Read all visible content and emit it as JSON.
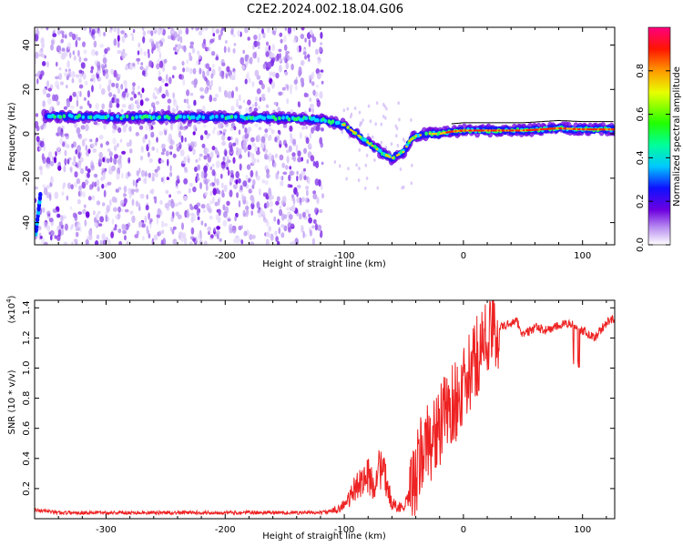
{
  "figure_title": "C2E2.2024.002.18.04.G06",
  "chart_data": [
    {
      "type": "heatmap",
      "title": "",
      "xlabel": "Height of straight line (km)",
      "ylabel": "Frequency (Hz)",
      "xlim": [
        -360,
        127
      ],
      "ylim": [
        -50,
        48
      ],
      "x_ticks": [
        -300,
        -200,
        -100,
        0,
        100
      ],
      "y_ticks": [
        -40,
        -20,
        0,
        20,
        40
      ],
      "grid": false,
      "ridge": {
        "description_of_values": "frequency (Hz) of peak spectral amplitude versus height (km)",
        "x": [
          -350,
          -300,
          -250,
          -200,
          -150,
          -120,
          -100,
          -90,
          -80,
          -70,
          -60,
          -50,
          -45,
          -40,
          -30,
          -20,
          -10,
          0,
          20,
          50,
          80,
          100,
          127
        ],
        "y": [
          8,
          7.5,
          7.5,
          7.5,
          7,
          6.5,
          4,
          0,
          -4,
          -8,
          -11,
          -8,
          -3,
          -1,
          0,
          0,
          1,
          1.5,
          1.5,
          1.5,
          2.5,
          2,
          2
        ]
      },
      "colorbar": {
        "label": "Normalized spectral amplitude",
        "range": [
          0,
          1
        ],
        "ticks": [
          "0.0",
          "0.2",
          "0.4",
          "0.6",
          "0.8"
        ],
        "tick_values": [
          0,
          0.2,
          0.4,
          0.6,
          0.8
        ],
        "colormap": "rainbow"
      }
    },
    {
      "type": "line",
      "title": "",
      "xlabel": "Height of straight line (km)",
      "ylabel": "SNR (10 * v/v)",
      "y_scale_note": "(x10",
      "y_scale_exp": "4",
      "xlim": [
        -360,
        127
      ],
      "ylim": [
        0,
        1.45
      ],
      "x_ticks": [
        -300,
        -200,
        -100,
        0,
        100
      ],
      "y_ticks": [
        0.2,
        0.4,
        0.6,
        0.8,
        1.0,
        1.2,
        1.4
      ],
      "y_tick_labels": [
        "0.2",
        "0.4",
        "0.6",
        "0.8",
        "1.0",
        "1.2",
        "1.4"
      ],
      "grid": false,
      "series": [
        {
          "color": "#ee2222",
          "x": [
            -360,
            -340,
            -300,
            -250,
            -200,
            -150,
            -120,
            -110,
            -100,
            -95,
            -90,
            -85,
            -80,
            -75,
            -70,
            -65,
            -60,
            -55,
            -50,
            -45,
            -40,
            -35,
            -30,
            -25,
            -20,
            -15,
            -10,
            -5,
            0,
            5,
            10,
            15,
            20,
            25,
            30,
            35,
            40,
            45,
            50,
            60,
            70,
            80,
            90,
            95,
            100,
            110,
            120,
            127
          ],
          "y": [
            0.06,
            0.04,
            0.04,
            0.04,
            0.04,
            0.04,
            0.04,
            0.05,
            0.09,
            0.14,
            0.22,
            0.26,
            0.28,
            0.22,
            0.35,
            0.25,
            0.1,
            0.08,
            0.07,
            0.15,
            0.25,
            0.45,
            0.5,
            0.55,
            0.6,
            0.7,
            0.75,
            0.8,
            0.85,
            0.95,
            1.05,
            1.15,
            1.2,
            1.23,
            1.27,
            1.28,
            1.3,
            1.31,
            1.22,
            1.27,
            1.25,
            1.28,
            1.3,
            1.28,
            1.25,
            1.2,
            1.3,
            1.33
          ]
        }
      ]
    }
  ]
}
